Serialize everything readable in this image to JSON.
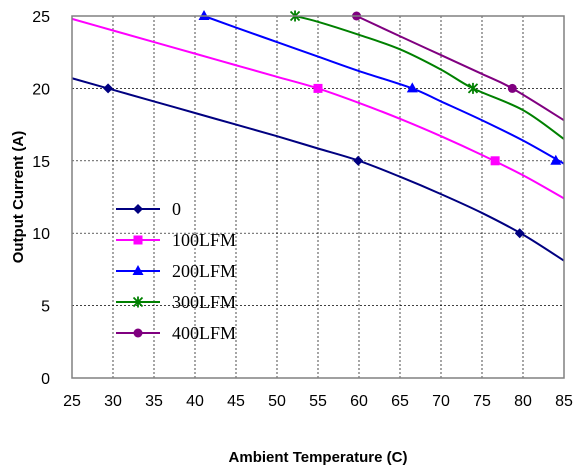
{
  "chart_data": {
    "type": "line",
    "title": "",
    "xlabel": "Ambient Temperature (C)",
    "ylabel": "Output Current (A)",
    "xlim": [
      25,
      85
    ],
    "ylim": [
      0,
      25
    ],
    "xticks": [
      25,
      30,
      35,
      40,
      45,
      50,
      55,
      60,
      65,
      70,
      75,
      80,
      85
    ],
    "yticks": [
      0,
      5,
      10,
      15,
      20,
      25
    ],
    "grid": "dashed",
    "legend_position": "lower-left",
    "series": [
      {
        "name": "0",
        "color": "#000080",
        "marker": "diamond",
        "curve": [
          [
            25,
            20.7
          ],
          [
            30,
            19.9
          ],
          [
            35,
            19.1
          ],
          [
            40,
            18.3
          ],
          [
            45,
            17.5
          ],
          [
            50,
            16.7
          ],
          [
            55,
            15.85
          ],
          [
            60,
            15.0
          ],
          [
            65,
            13.9
          ],
          [
            70,
            12.7
          ],
          [
            75,
            11.4
          ],
          [
            80,
            9.9
          ],
          [
            85,
            8.1
          ]
        ],
        "markers": [
          [
            29.4,
            20.0
          ],
          [
            59.9,
            15.0
          ],
          [
            79.6,
            10.0
          ]
        ]
      },
      {
        "name": "100LFM",
        "color": "#ff00ff",
        "marker": "square",
        "curve": [
          [
            25,
            24.8
          ],
          [
            30,
            24.0
          ],
          [
            35,
            23.2
          ],
          [
            40,
            22.4
          ],
          [
            45,
            21.6
          ],
          [
            50,
            20.8
          ],
          [
            55,
            20.0
          ],
          [
            60,
            19.0
          ],
          [
            65,
            17.9
          ],
          [
            70,
            16.7
          ],
          [
            75,
            15.4
          ],
          [
            80,
            14.0
          ],
          [
            85,
            12.4
          ]
        ],
        "markers": [
          [
            55.0,
            20.0
          ],
          [
            76.6,
            15.0
          ]
        ]
      },
      {
        "name": "200LFM",
        "color": "#0000ff",
        "marker": "triangle",
        "curve": [
          [
            41.1,
            25.0
          ],
          [
            45,
            24.2
          ],
          [
            50,
            23.2
          ],
          [
            55,
            22.2
          ],
          [
            60,
            21.2
          ],
          [
            66.5,
            20.0
          ],
          [
            70,
            19.1
          ],
          [
            75,
            17.8
          ],
          [
            80,
            16.4
          ],
          [
            85,
            14.8
          ]
        ],
        "markers": [
          [
            41.1,
            25.0
          ],
          [
            66.5,
            20.0
          ],
          [
            84.0,
            15.0
          ]
        ]
      },
      {
        "name": "300LFM",
        "color": "#008000",
        "marker": "star",
        "curve": [
          [
            52.2,
            25.0
          ],
          [
            55,
            24.6
          ],
          [
            60,
            23.7
          ],
          [
            65,
            22.7
          ],
          [
            70,
            21.3
          ],
          [
            73.9,
            20.0
          ],
          [
            80,
            18.5
          ],
          [
            85,
            16.5
          ]
        ],
        "markers": [
          [
            52.2,
            25.0
          ],
          [
            73.9,
            20.0
          ]
        ]
      },
      {
        "name": "400LFM",
        "color": "#800080",
        "marker": "circle",
        "curve": [
          [
            59.7,
            25.0
          ],
          [
            65,
            23.6
          ],
          [
            70,
            22.3
          ],
          [
            75,
            21.0
          ],
          [
            78.7,
            20.0
          ],
          [
            85,
            17.8
          ]
        ],
        "markers": [
          [
            59.7,
            25.0
          ],
          [
            78.7,
            20.0
          ]
        ]
      }
    ]
  }
}
